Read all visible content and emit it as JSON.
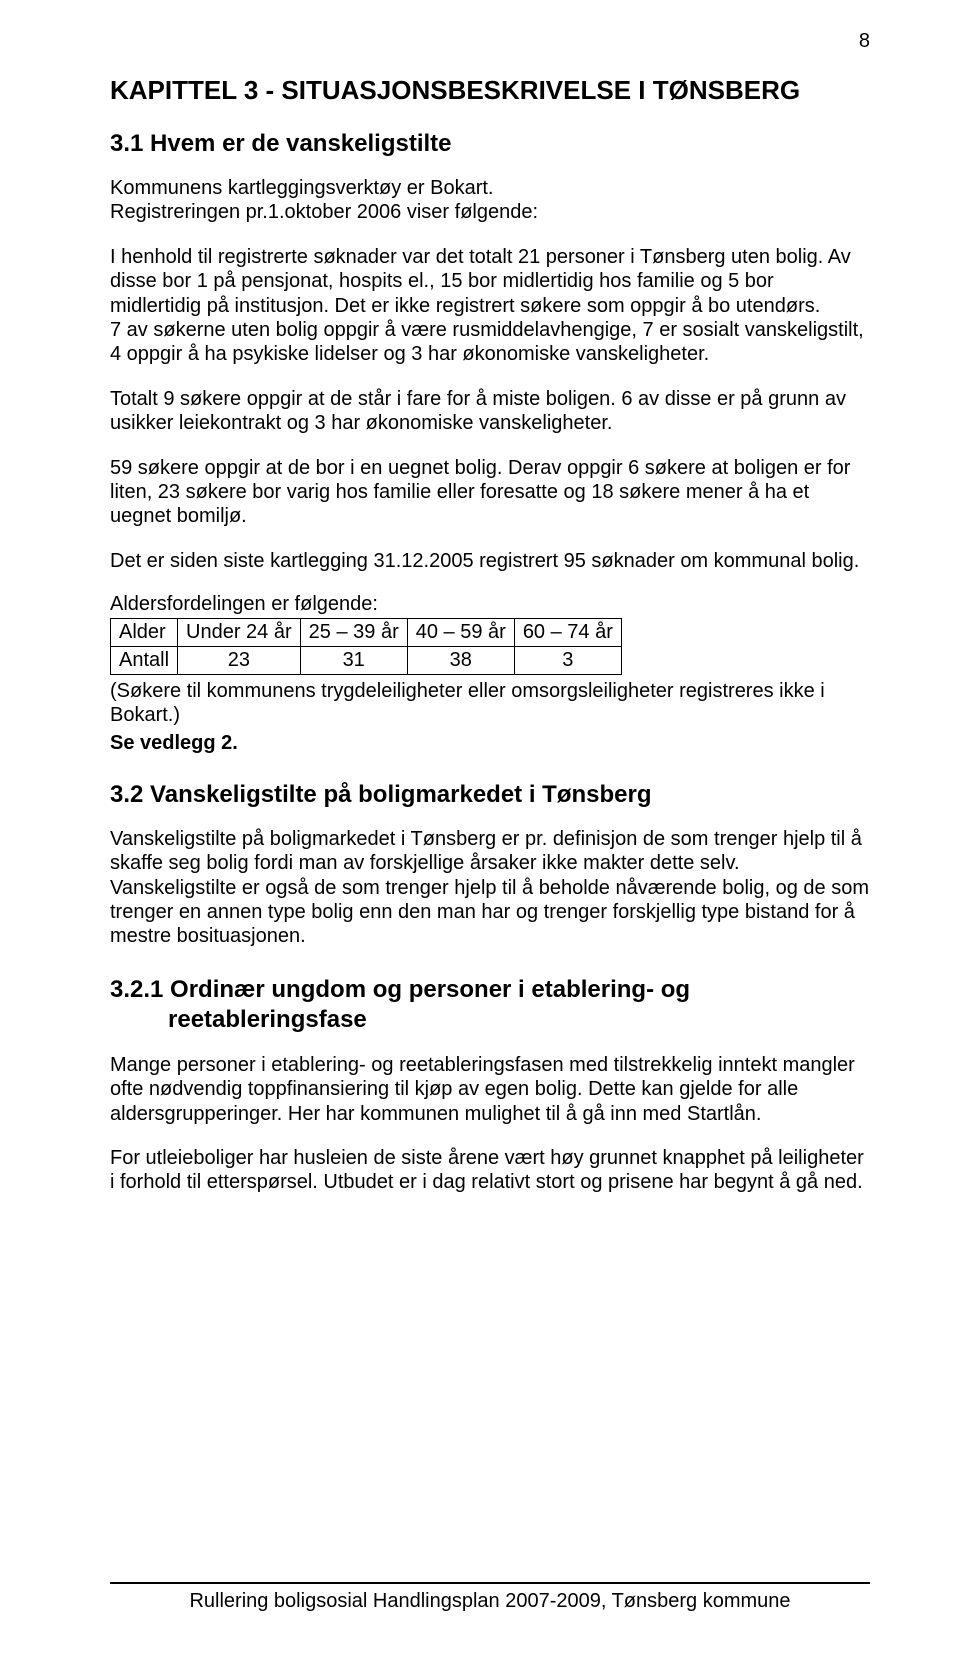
{
  "page_number": "8",
  "chapter": {
    "title": "KAPITTEL 3 - SITUASJONSBESKRIVELSE I TØNSBERG"
  },
  "section_3_1": {
    "title": "3.1 Hvem er de vanskeligstilte",
    "p1": "Kommunens kartleggingsverktøy er Bokart.",
    "p2": "Registreringen pr.1.oktober 2006 viser følgende:",
    "p3": "I henhold til registrerte søknader var det totalt 21 personer i Tønsberg uten bolig.  Av disse bor 1 på pensjonat, hospits el., 15 bor midlertidig hos familie og 5 bor midlertidig på institusjon. Det er ikke registrert søkere som oppgir å bo utendørs.",
    "p4": "7 av søkerne uten bolig oppgir å være rusmiddelavhengige, 7 er sosialt vanskeligstilt, 4 oppgir å ha psykiske lidelser og 3 har økonomiske vanskeligheter.",
    "p5": "Totalt 9 søkere oppgir at de står i fare for å miste boligen.  6 av disse er på grunn av usikker leiekontrakt og 3 har økonomiske vanskeligheter.",
    "p6": "59 søkere oppgir at de bor i en uegnet bolig. Derav oppgir 6 søkere at boligen er for liten, 23 søkere bor varig hos familie eller foresatte og 18 søkere mener å ha et uegnet bomiljø.",
    "p7": "Det er siden siste kartlegging 31.12.2005 registrert  95 søknader om kommunal bolig.",
    "table_intro": "Aldersfordelingen er følgende:",
    "table": {
      "headers": [
        "Alder",
        "Under 24 år",
        "25 – 39 år",
        "40 – 59 år",
        "60 – 74 år"
      ],
      "row_label": "Antall",
      "row_values": [
        "23",
        "31",
        "38",
        "3"
      ]
    },
    "post_table_note": "(Søkere til kommunens trygdeleiligheter eller omsorgsleiligheter registreres ikke i Bokart.)",
    "see_attachment": "Se vedlegg 2."
  },
  "section_3_2": {
    "title": "3.2 Vanskeligstilte på boligmarkedet i Tønsberg",
    "p1": "Vanskeligstilte på boligmarkedet i Tønsberg er pr. definisjon de som trenger hjelp til å skaffe seg bolig fordi man av forskjellige årsaker ikke makter dette selv. Vanskeligstilte er også de som trenger hjelp til å beholde nåværende bolig, og de som trenger en annen type bolig enn den man har og trenger forskjellig type bistand for å mestre bosituasjonen."
  },
  "section_3_2_1": {
    "title_line1": "3.2.1 Ordinær ungdom og personer i etablering- og",
    "title_line2": "reetableringsfase",
    "p1": "Mange personer i etablering- og reetableringsfasen med tilstrekkelig inntekt  mangler ofte nødvendig toppfinansiering til kjøp av egen bolig.  Dette kan gjelde for alle aldersgrupperinger. Her har kommunen mulighet til å gå inn med Startlån.",
    "p2": "For utleieboliger har husleien de siste årene vært høy grunnet knapphet på leiligheter i forhold til etterspørsel. Utbudet er i dag relativt stort og prisene har begynt å gå ned."
  },
  "footer": {
    "text": "Rullering boligsosial Handlingsplan 2007-2009, Tønsberg kommune"
  }
}
